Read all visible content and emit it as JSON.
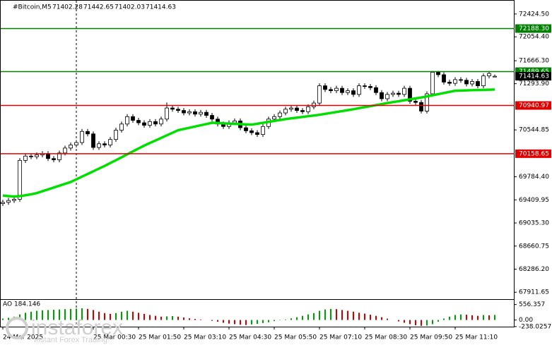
{
  "chart_data": {
    "type": "candlestick",
    "symbol": "#Bitcoin,M5",
    "header_values": [
      71402.28,
      71442.65,
      71402.03,
      71414.63
    ],
    "watermark": {
      "brand": "instaforex",
      "tagline": "Instant Forex Trading"
    },
    "categories": [
      "24 Mar 2025",
      null,
      null,
      null,
      null,
      null,
      null,
      null,
      null,
      null,
      null,
      null,
      null,
      null,
      null,
      null,
      "25 Mar 00:30",
      null,
      null,
      null,
      null,
      null,
      null,
      null,
      "25 Mar 01:50",
      null,
      null,
      null,
      null,
      null,
      null,
      null,
      "25 Mar 03:10",
      null,
      null,
      null,
      null,
      null,
      null,
      null,
      "25 Mar 04:30",
      null,
      null,
      null,
      null,
      null,
      null,
      null,
      "25 Mar 05:50",
      null,
      null,
      null,
      null,
      null,
      null,
      null,
      "25 Mar 07:10",
      null,
      null,
      null,
      null,
      null,
      null,
      null,
      "25 Mar 08:30",
      null,
      null,
      null,
      null,
      null,
      null,
      null,
      "25 Mar 09:50",
      null,
      null,
      null,
      null,
      null,
      null,
      null,
      "25 Mar 11:10",
      null,
      null,
      null,
      null,
      null,
      null,
      null
    ],
    "open": [
      69350,
      69370,
      69400,
      69420,
      70050,
      70120,
      70110,
      70140,
      70160,
      70080,
      70060,
      70170,
      70250,
      70300,
      70340,
      70520,
      70480,
      70260,
      70320,
      70300,
      70390,
      70540,
      70640,
      70760,
      70700,
      70660,
      70620,
      70680,
      70640,
      70720,
      70900,
      70880,
      70860,
      70820,
      70840,
      70800,
      70830,
      70780,
      70720,
      70640,
      70600,
      70660,
      70690,
      70580,
      70530,
      70500,
      70470,
      70600,
      70720,
      70760,
      70820,
      70880,
      70900,
      70860,
      70840,
      70920,
      70980,
      71260,
      71200,
      71180,
      71220,
      71150,
      71180,
      71120,
      71260,
      71250,
      71230,
      71150,
      71050,
      71120,
      71140,
      71120,
      71220,
      71010,
      70990,
      70850,
      71130,
      71480,
      71440,
      71320,
      71300,
      71360,
      71350,
      71290,
      71330,
      71260,
      71420,
      71402.28
    ],
    "high": [
      69410,
      69440,
      69460,
      70090,
      70160,
      70160,
      70180,
      70200,
      70200,
      70120,
      70210,
      70290,
      70340,
      70380,
      70560,
      70560,
      70520,
      70360,
      70360,
      70430,
      70580,
      70680,
      70800,
      70800,
      70740,
      70700,
      70720,
      70720,
      70760,
      70990,
      70940,
      70920,
      70900,
      70880,
      70880,
      70870,
      70870,
      70820,
      70760,
      70680,
      70700,
      70730,
      70730,
      70620,
      70570,
      70540,
      70640,
      70760,
      70800,
      70860,
      70920,
      70940,
      70940,
      70900,
      70960,
      71020,
      71300,
      71300,
      71240,
      71260,
      71260,
      71220,
      71220,
      71300,
      71300,
      71290,
      71270,
      71190,
      71160,
      71180,
      71180,
      71260,
      71260,
      71050,
      71030,
      71170,
      71500,
      71500,
      71480,
      71360,
      71400,
      71400,
      71390,
      71370,
      71370,
      71460,
      71500,
      71442.65
    ],
    "low": [
      69310,
      69330,
      69360,
      69380,
      70010,
      70070,
      70070,
      70100,
      70040,
      70020,
      70020,
      70130,
      70210,
      70260,
      70300,
      70440,
      70220,
      70220,
      70260,
      70260,
      70350,
      70500,
      70600,
      70660,
      70620,
      70580,
      70580,
      70600,
      70600,
      70680,
      70840,
      70820,
      70780,
      70780,
      70760,
      70760,
      70740,
      70680,
      70600,
      70560,
      70560,
      70620,
      70540,
      70490,
      70460,
      70430,
      70430,
      70560,
      70680,
      70720,
      70780,
      70840,
      70820,
      70800,
      70800,
      70880,
      70940,
      71160,
      71140,
      71140,
      71110,
      71110,
      71080,
      71080,
      71210,
      71190,
      71110,
      71010,
      71010,
      71080,
      71080,
      71080,
      70970,
      70950,
      70810,
      70810,
      71090,
      71400,
      71280,
      71260,
      71260,
      71310,
      71250,
      71250,
      71220,
      71220,
      71380,
      71402.03
    ],
    "close": [
      69370,
      69400,
      69420,
      70050,
      70120,
      70110,
      70140,
      70160,
      70080,
      70060,
      70170,
      70250,
      70300,
      70340,
      70520,
      70480,
      70260,
      70320,
      70300,
      70390,
      70540,
      70640,
      70760,
      70700,
      70660,
      70620,
      70680,
      70640,
      70720,
      70900,
      70880,
      70860,
      70820,
      70840,
      70800,
      70830,
      70780,
      70720,
      70640,
      70600,
      70660,
      70690,
      70580,
      70530,
      70500,
      70470,
      70600,
      70720,
      70760,
      70820,
      70880,
      70900,
      70860,
      70840,
      70920,
      70980,
      71260,
      71200,
      71180,
      71220,
      71150,
      71180,
      71120,
      71260,
      71250,
      71230,
      71150,
      71050,
      71120,
      71140,
      71120,
      71220,
      71010,
      70990,
      70850,
      71130,
      71480,
      71440,
      71320,
      71300,
      71360,
      71350,
      71290,
      71330,
      71260,
      71420,
      71460,
      71414.63
    ],
    "moving_average": {
      "color": "#00e000",
      "values": [
        69480,
        69470,
        69465,
        69470,
        69485,
        69500,
        69520,
        69550,
        69580,
        69610,
        69640,
        69670,
        69700,
        69743,
        69787,
        69830,
        69873,
        69917,
        69960,
        70007,
        70054,
        70101,
        70149,
        70196,
        70243,
        70290,
        70332,
        70373,
        70415,
        70457,
        70498,
        70540,
        70560,
        70580,
        70600,
        70620,
        70640,
        70660,
        70656,
        70651,
        70647,
        70643,
        70639,
        70634,
        70630,
        70645,
        70660,
        70675,
        70690,
        70705,
        70720,
        70732,
        70743,
        70755,
        70767,
        70778,
        70790,
        70805,
        70820,
        70835,
        70850,
        70865,
        70880,
        70897,
        70913,
        70930,
        70947,
        70963,
        70980,
        70995,
        71010,
        71025,
        71040,
        71055,
        71070,
        71088,
        71107,
        71125,
        71143,
        71162,
        71180,
        71183,
        71186,
        71189,
        71191,
        71194,
        71197,
        71200
      ]
    },
    "ylim": [
      67800,
      72640
    ],
    "yticks": [
      {
        "value": 72424.5,
        "label": "72424.50"
      },
      {
        "value": 72054.4,
        "label": "72054.40"
      },
      {
        "value": 71666.3,
        "label": "71666.30"
      },
      {
        "value": 71293.9,
        "label": "71293.90"
      },
      {
        "value": 70544.85,
        "label": "70544.85"
      },
      {
        "value": 69784.4,
        "label": "69784.40"
      },
      {
        "value": 69409.95,
        "label": "69409.95"
      },
      {
        "value": 69035.3,
        "label": "69035.30"
      },
      {
        "value": 68660.75,
        "label": "68660.75"
      },
      {
        "value": 68286.2,
        "label": "68286.20"
      },
      {
        "value": 67911.65,
        "label": "67911.65"
      }
    ],
    "levels": [
      {
        "value": 72188.3,
        "label": "72188.30",
        "color": "#008000"
      },
      {
        "value": 71489.65,
        "color": "#008000"
      },
      {
        "value": 70940.97,
        "color": "#e00000"
      },
      {
        "value": 70158.65,
        "color": "#e00000"
      }
    ],
    "current_price": 71414.63,
    "oscillator": {
      "label": "AO 184.146",
      "up_color": "#00a000",
      "down_color": "#d00000",
      "values": [
        50,
        80,
        120,
        200,
        260,
        300,
        330,
        350,
        360,
        370,
        380,
        390,
        400,
        410,
        420,
        400,
        360,
        300,
        250,
        220,
        250,
        300,
        330,
        300,
        260,
        220,
        180,
        150,
        120,
        130,
        140,
        120,
        90,
        60,
        40,
        20,
        0,
        -30,
        -60,
        -100,
        -130,
        -150,
        -170,
        -180,
        -160,
        -140,
        -110,
        -80,
        -40,
        -10,
        20,
        60,
        100,
        150,
        200,
        250,
        330,
        380,
        400,
        390,
        360,
        330,
        300,
        260,
        230,
        190,
        150,
        100,
        50,
        0,
        -50,
        -100,
        -150,
        -190,
        -210,
        -200,
        -150,
        -60,
        50,
        120,
        180,
        200,
        190,
        170,
        150,
        180,
        170,
        184.146
      ],
      "ylim": [
        -240,
        700
      ],
      "yticks": [
        556.357,
        {
          "value": 0,
          "label": "0.00"
        },
        -238.0257
      ]
    }
  }
}
